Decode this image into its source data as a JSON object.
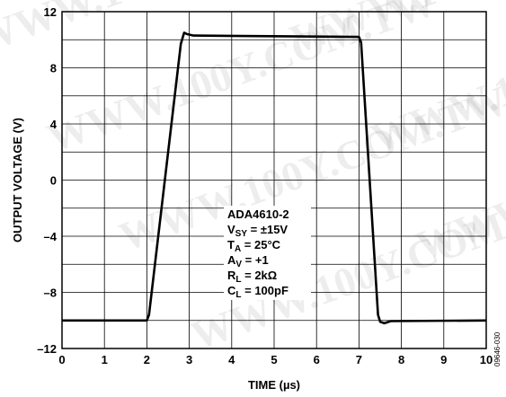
{
  "chart_data": {
    "type": "line",
    "xlabel": "TIME (µs)",
    "ylabel": "OUTPUT VOLTAGE (V)",
    "xlim": [
      0,
      10
    ],
    "ylim": [
      -12,
      12
    ],
    "x_ticks": [
      0,
      1,
      2,
      3,
      4,
      5,
      6,
      7,
      8,
      9,
      10
    ],
    "y_ticks": [
      12,
      8,
      4,
      0,
      -4,
      -8,
      -12
    ],
    "y_tick_labels": [
      "12",
      "8",
      "4",
      "0",
      "–4",
      "–8",
      "–12"
    ],
    "grid": true,
    "series": [
      {
        "x": [
          0,
          2.0,
          2.05,
          2.8,
          2.88,
          2.95,
          3.1,
          7.0,
          7.05,
          7.45,
          7.5,
          7.6,
          7.75,
          10
        ],
        "y": [
          -10.0,
          -10.0,
          -9.6,
          9.7,
          10.5,
          10.4,
          10.3,
          10.2,
          9.8,
          -9.6,
          -10.1,
          -10.2,
          -10.05,
          -10.0
        ]
      }
    ],
    "annotation": {
      "line1": "ADA4610-2",
      "line2": {
        "main": "V",
        "sub": "SY",
        "rest": " = ±15V"
      },
      "line3": {
        "main": "T",
        "sub": "A",
        "rest": " = 25°C"
      },
      "line4": {
        "main": "A",
        "sub": "V",
        "rest": " = +1"
      },
      "line5": {
        "main": "R",
        "sub": "L",
        "rest": " = 2kΩ"
      },
      "line6": {
        "main": "C",
        "sub": "L",
        "rest": " = 100pF"
      }
    },
    "figure_code": "09646-030",
    "watermark_text": "WWW.100Y.COM.TW"
  }
}
